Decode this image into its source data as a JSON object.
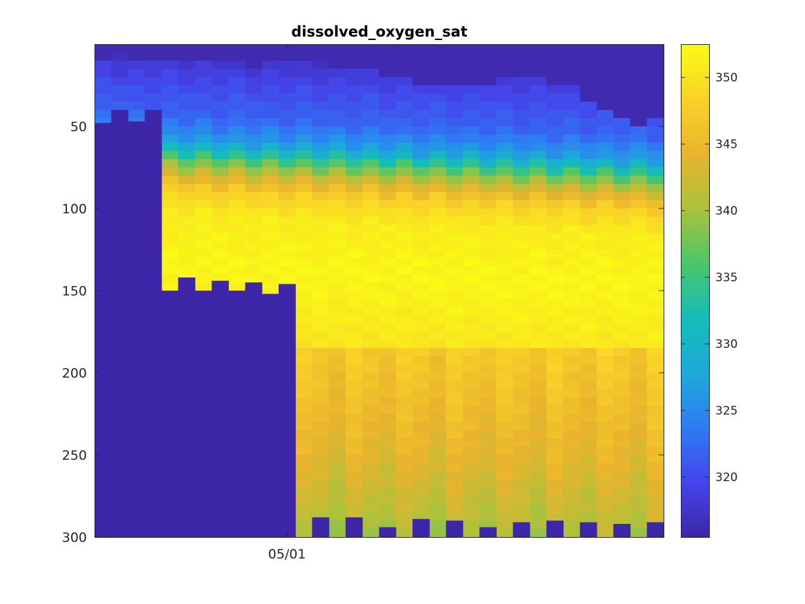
{
  "chart_data": {
    "type": "heatmap",
    "title": "dissolved_oxygen_sat",
    "xlabel": "",
    "ylabel": "",
    "y_axis_direction": "reversed",
    "ylim": [
      0,
      300
    ],
    "y_ticks": [
      50,
      100,
      150,
      200,
      250,
      300
    ],
    "x_tick_labels": [
      "05/01"
    ],
    "x_tick_profile_position": 11.5,
    "profile_count": 34,
    "clim": [
      315.5,
      352.5
    ],
    "colorbar": {
      "position": "right",
      "ticks": [
        320,
        325,
        330,
        335,
        340,
        345,
        350
      ],
      "colormap": "parula",
      "colormap_stops": [
        "#3e26a8",
        "#4444ea",
        "#2e7cf4",
        "#1da9d9",
        "#13bdb8",
        "#4cc66a",
        "#abc23c",
        "#e9b32d",
        "#f9d328",
        "#f9fb15"
      ]
    },
    "grid": false,
    "fill_value_color": "#3e26a8",
    "profile_start_depth": [
      8,
      5,
      7,
      9,
      10,
      7,
      8,
      9,
      10,
      11,
      9,
      8,
      10,
      8,
      11,
      13,
      15,
      17,
      19,
      21,
      22,
      23,
      22,
      21,
      20,
      19,
      20,
      22,
      25,
      33,
      38,
      43,
      46,
      42
    ],
    "profile_end_depth": [
      300,
      300,
      300,
      300,
      300,
      300,
      300,
      300,
      300,
      300,
      300,
      300,
      300,
      300,
      300,
      300,
      300,
      300,
      300,
      300,
      300,
      300,
      300,
      300,
      300,
      300,
      300,
      300,
      300,
      300,
      300,
      300,
      300,
      300
    ],
    "missing_data_top": [
      48,
      40,
      47,
      40,
      150,
      142,
      150,
      144,
      150,
      145,
      152,
      146,
      300,
      288,
      300,
      288,
      300,
      294,
      300,
      289,
      300,
      290,
      300,
      294,
      300,
      291,
      300,
      290,
      300,
      291,
      300,
      292,
      300,
      291
    ],
    "depth_profile_template": {
      "depths": [
        0,
        20,
        40,
        55,
        65,
        75,
        85,
        100,
        130,
        160,
        200,
        240,
        280,
        300
      ],
      "values": [
        317,
        320,
        322,
        327,
        336,
        343,
        348,
        351,
        352,
        351,
        349,
        347,
        344,
        342
      ]
    }
  }
}
